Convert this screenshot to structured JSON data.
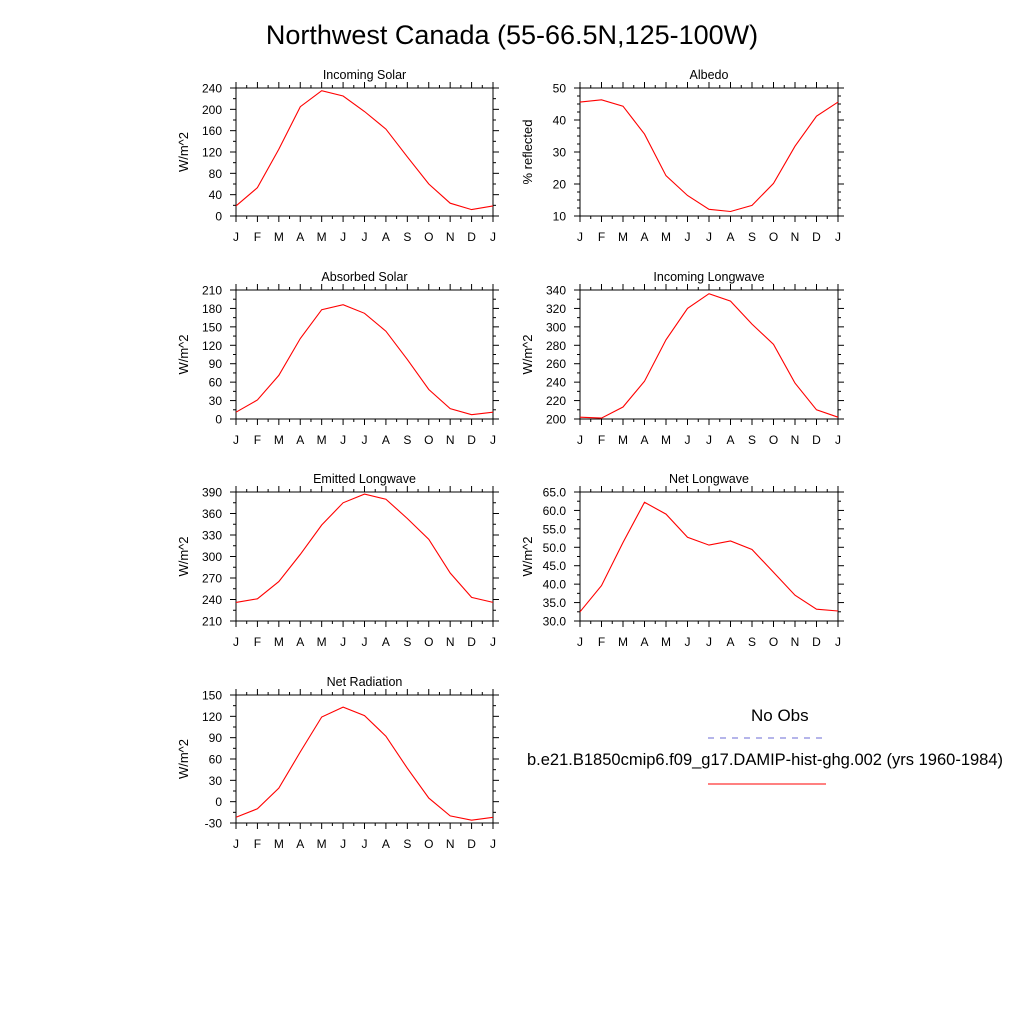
{
  "title": "Northwest Canada (55-66.5N,125-100W)",
  "months": [
    "J",
    "F",
    "M",
    "A",
    "M",
    "J",
    "J",
    "A",
    "S",
    "O",
    "N",
    "D",
    "J"
  ],
  "legend": {
    "obs_label": "No Obs",
    "obs_color": "#6b6bd6",
    "case_label": "b.e21.B1850cmip6.f09_g17.DAMIP-hist-ghg.002 (yrs 1960-1984)",
    "case_color": "#ff0000"
  },
  "chart_data": [
    {
      "type": "line",
      "title": "Incoming Solar",
      "ylabel": "W/m^2",
      "ylim": [
        0,
        240
      ],
      "yticks": [
        0,
        40,
        80,
        120,
        160,
        200,
        240
      ],
      "ytick_labels": [
        "0",
        "40",
        "80",
        "120",
        "160",
        "200",
        "240"
      ],
      "minor_step": 20,
      "x": [
        "J",
        "F",
        "M",
        "A",
        "M",
        "J",
        "J",
        "A",
        "S",
        "O",
        "N",
        "D",
        "J"
      ],
      "series": [
        {
          "values": [
            19,
            53,
            125,
            205,
            235,
            225,
            196,
            163,
            111,
            60,
            24,
            12,
            19
          ]
        }
      ]
    },
    {
      "type": "line",
      "title": "Albedo",
      "ylabel": "% reflected",
      "ylim": [
        10,
        50
      ],
      "yticks": [
        10,
        20,
        30,
        40,
        50
      ],
      "ytick_labels": [
        "10",
        "20",
        "30",
        "40",
        "50"
      ],
      "minor_step": 2.5,
      "x": [
        "J",
        "F",
        "M",
        "A",
        "M",
        "J",
        "J",
        "A",
        "S",
        "O",
        "N",
        "D",
        "J"
      ],
      "series": [
        {
          "values": [
            45.6,
            46.3,
            44.3,
            35.6,
            22.6,
            16.4,
            12.1,
            11.4,
            13.3,
            20.2,
            31.8,
            41.2,
            45.6
          ]
        }
      ]
    },
    {
      "type": "line",
      "title": "Absorbed Solar",
      "ylabel": "W/m^2",
      "ylim": [
        0,
        210
      ],
      "yticks": [
        0,
        30,
        60,
        90,
        120,
        150,
        180,
        210
      ],
      "ytick_labels": [
        "0",
        "30",
        "60",
        "90",
        "120",
        "150",
        "180",
        "210"
      ],
      "minor_step": 15,
      "x": [
        "J",
        "F",
        "M",
        "A",
        "M",
        "J",
        "J",
        "A",
        "S",
        "O",
        "N",
        "D",
        "J"
      ],
      "series": [
        {
          "values": [
            11,
            31,
            71,
            131,
            178,
            186,
            172,
            143,
            97,
            48,
            17,
            7,
            11
          ]
        }
      ]
    },
    {
      "type": "line",
      "title": "Incoming Longwave",
      "ylabel": "W/m^2",
      "ylim": [
        200,
        340
      ],
      "yticks": [
        200,
        220,
        240,
        260,
        280,
        300,
        320,
        340
      ],
      "ytick_labels": [
        "200",
        "220",
        "240",
        "260",
        "280",
        "300",
        "320",
        "340"
      ],
      "minor_step": 10,
      "x": [
        "J",
        "F",
        "M",
        "A",
        "M",
        "J",
        "J",
        "A",
        "S",
        "O",
        "N",
        "D",
        "J"
      ],
      "series": [
        {
          "values": [
            202,
            201,
            213,
            241,
            286,
            320,
            336,
            328,
            303,
            281,
            239,
            210,
            202
          ]
        }
      ]
    },
    {
      "type": "line",
      "title": "Emitted Longwave",
      "ylabel": "W/m^2",
      "ylim": [
        210,
        390
      ],
      "yticks": [
        210,
        240,
        270,
        300,
        330,
        360,
        390
      ],
      "ytick_labels": [
        "210",
        "240",
        "270",
        "300",
        "330",
        "360",
        "390"
      ],
      "minor_step": 15,
      "x": [
        "J",
        "F",
        "M",
        "A",
        "M",
        "J",
        "J",
        "A",
        "S",
        "O",
        "N",
        "D",
        "J"
      ],
      "series": [
        {
          "values": [
            236,
            241,
            265,
            303,
            344,
            375,
            387,
            380,
            353,
            324,
            277,
            243,
            236
          ]
        }
      ]
    },
    {
      "type": "line",
      "title": "Net Longwave",
      "ylabel": "W/m^2",
      "ylim": [
        30,
        65
      ],
      "yticks": [
        30,
        35,
        40,
        45,
        50,
        55,
        60,
        65
      ],
      "ytick_labels": [
        "30.0",
        "35.0",
        "40.0",
        "45.0",
        "50.0",
        "55.0",
        "60.0",
        "65.0"
      ],
      "minor_step": 2.5,
      "x": [
        "J",
        "F",
        "M",
        "A",
        "M",
        "J",
        "J",
        "A",
        "S",
        "O",
        "N",
        "D",
        "J"
      ],
      "series": [
        {
          "values": [
            32.5,
            39.6,
            51.3,
            62.2,
            59.0,
            52.7,
            50.6,
            51.7,
            49.4,
            43.2,
            37.0,
            33.2,
            32.7
          ]
        }
      ]
    },
    {
      "type": "line",
      "title": "Net Radiation",
      "ylabel": "W/m^2",
      "ylim": [
        -30,
        150
      ],
      "yticks": [
        -30,
        0,
        30,
        60,
        90,
        120,
        150
      ],
      "ytick_labels": [
        "-30",
        "0",
        "30",
        "60",
        "90",
        "120",
        "150"
      ],
      "minor_step": 15,
      "x": [
        "J",
        "F",
        "M",
        "A",
        "M",
        "J",
        "J",
        "A",
        "S",
        "O",
        "N",
        "D",
        "J"
      ],
      "series": [
        {
          "values": [
            -22,
            -10,
            19,
            70,
            119,
            133,
            121,
            92,
            47,
            5,
            -20,
            -26,
            -22
          ]
        }
      ]
    }
  ]
}
